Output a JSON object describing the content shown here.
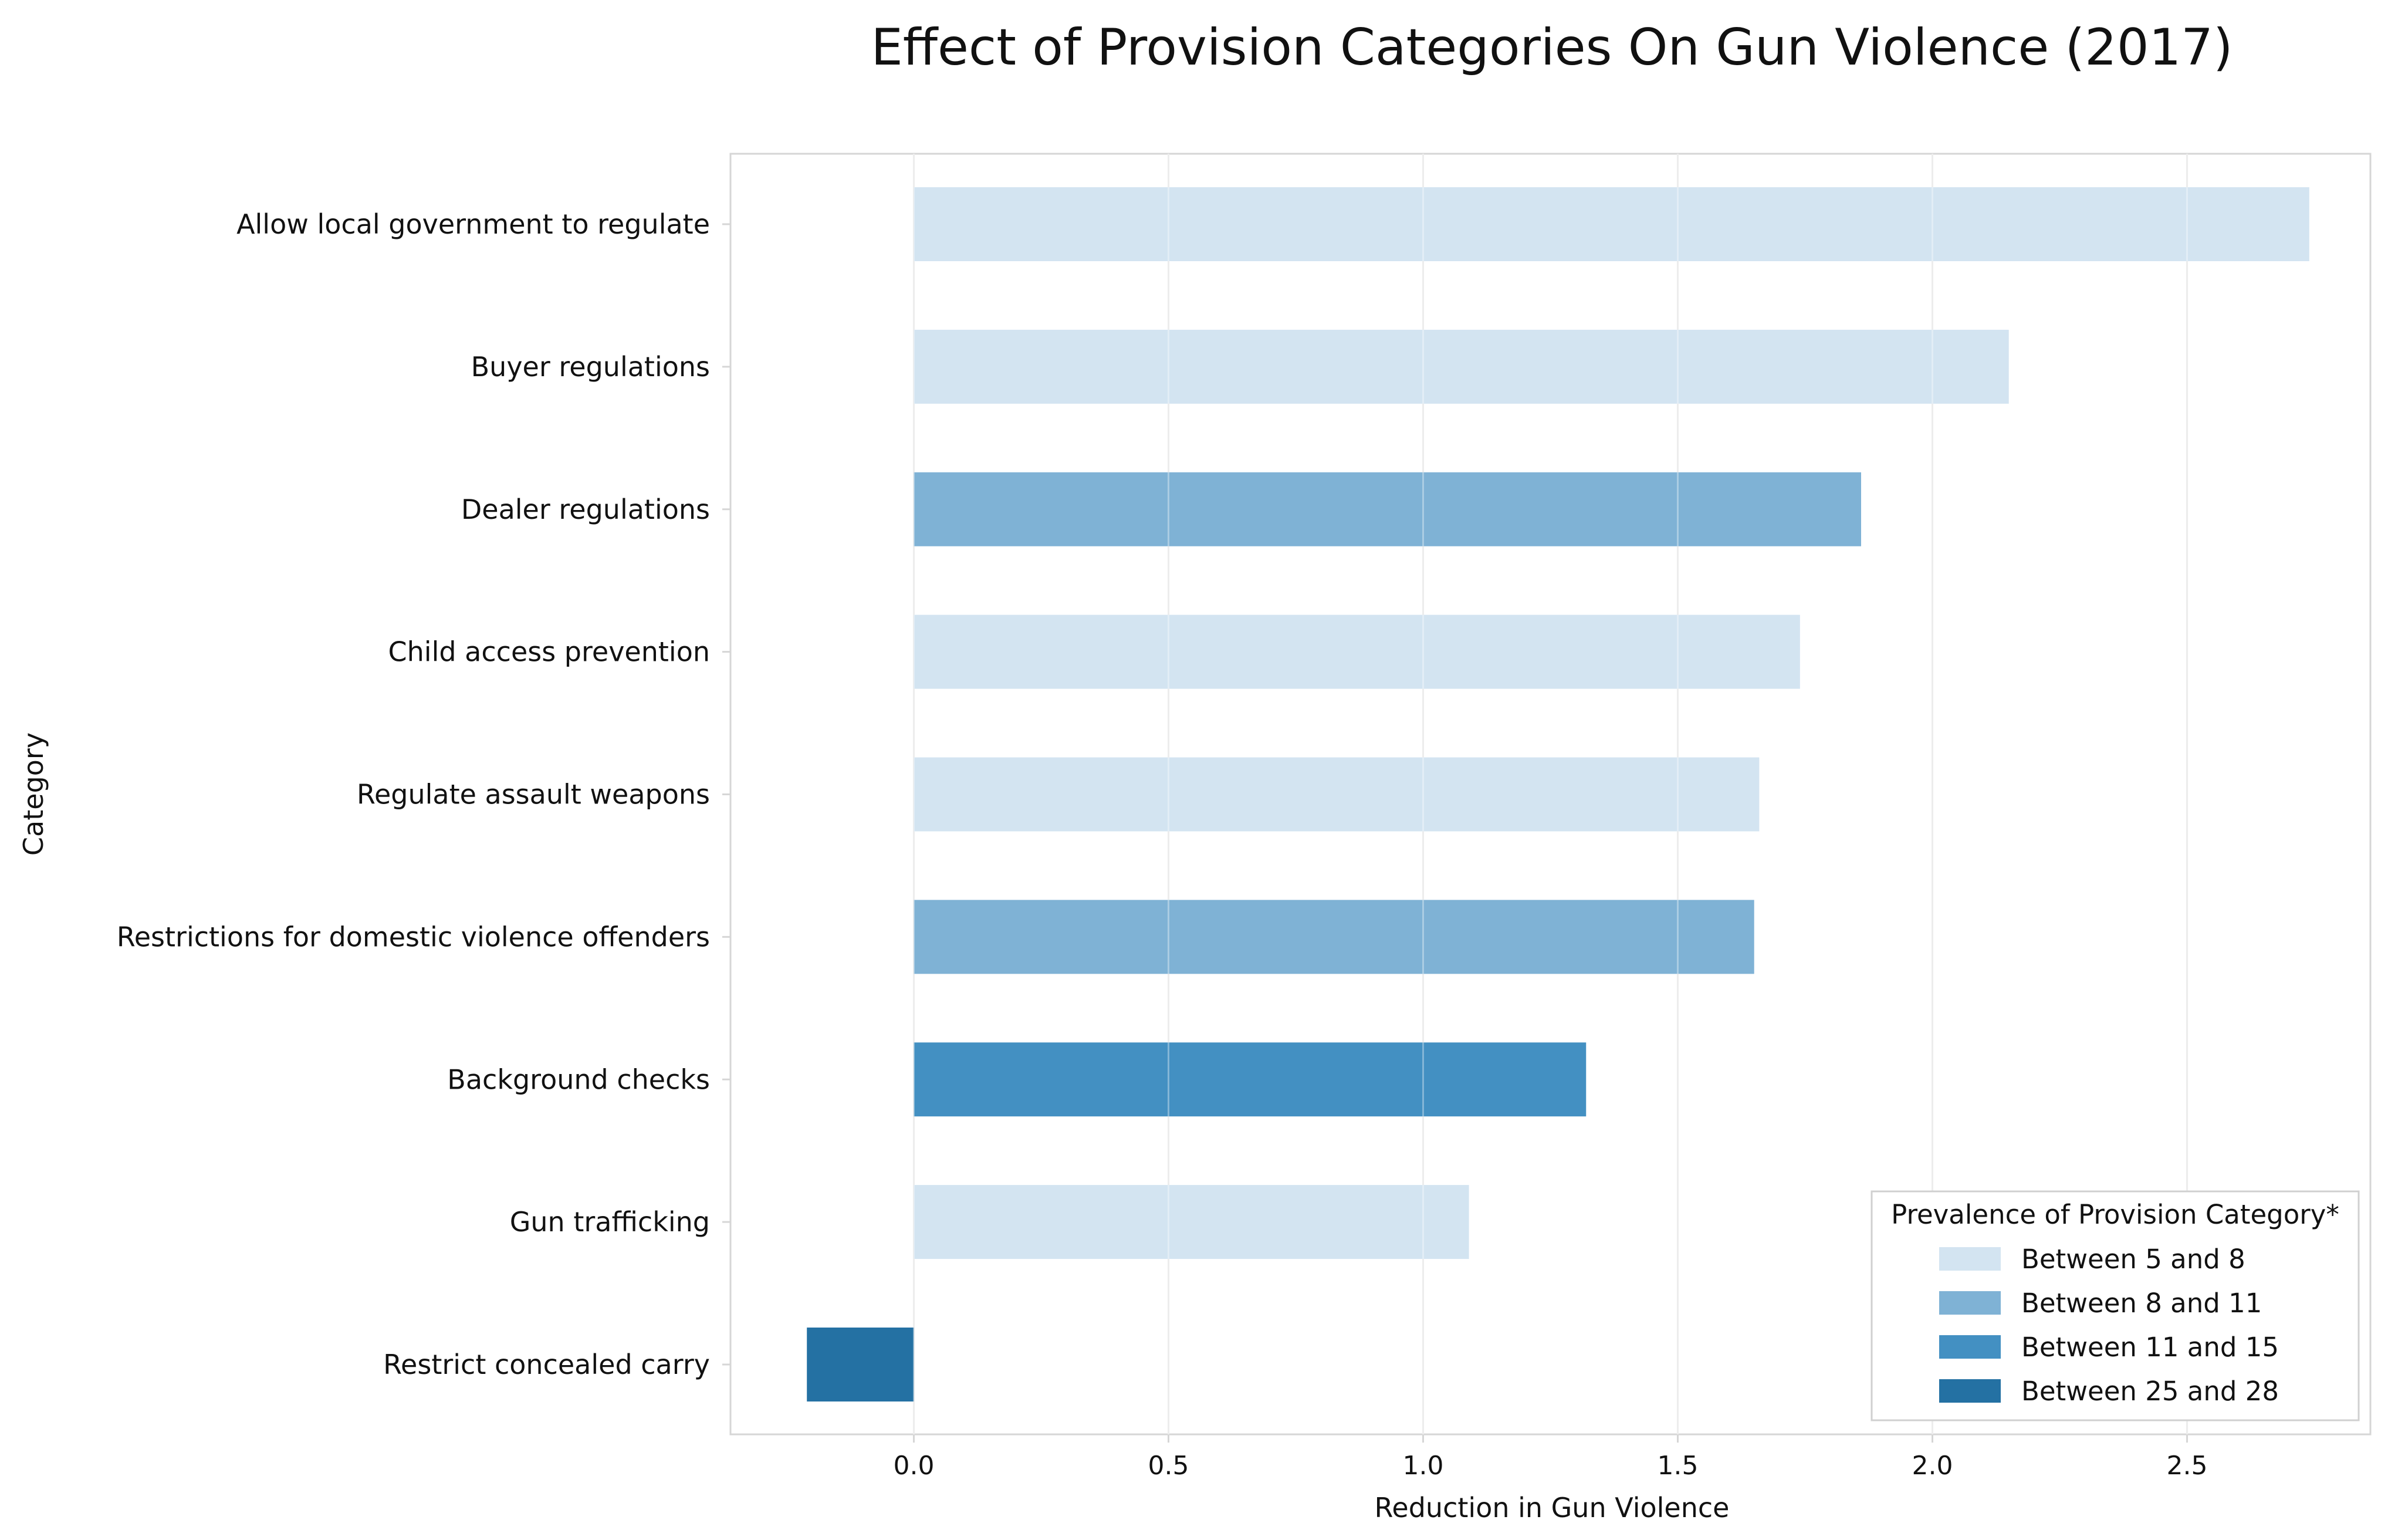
{
  "chart_data": {
    "type": "bar",
    "orientation": "horizontal",
    "title": "Effect of Provision Categories On Gun Violence (2017)",
    "xlabel": "Reduction in Gun Violence",
    "ylabel": "Category",
    "xlim": [
      -0.36,
      2.86
    ],
    "xticks": [
      0.0,
      0.5,
      1.0,
      1.5,
      2.0,
      2.5
    ],
    "xtick_labels": [
      "0.0",
      "0.5",
      "1.0",
      "1.5",
      "2.0",
      "2.5"
    ],
    "grid": true,
    "categories": [
      "Allow local government to regulate",
      "Buyer regulations",
      "Dealer regulations",
      "Child access prevention",
      "Regulate assault weapons",
      "Restrictions for domestic violence offenders",
      "Background checks",
      "Gun trafficking",
      "Restrict concealed carry"
    ],
    "values": [
      2.74,
      2.15,
      1.86,
      1.74,
      1.66,
      1.65,
      1.32,
      1.09,
      -0.21
    ],
    "prevalence_group": [
      0,
      0,
      1,
      0,
      0,
      1,
      2,
      0,
      3
    ],
    "legend": {
      "title": "Prevalence of Provision Category*",
      "position": "lower-right",
      "entries": [
        {
          "label": "Between 5 and 8",
          "color": "#d3e4f1"
        },
        {
          "label": "Between 8 and 11",
          "color": "#7fb2d5"
        },
        {
          "label": "Between 11 and 15",
          "color": "#4390c2"
        },
        {
          "label": "Between 25 and 28",
          "color": "#2471a3"
        }
      ]
    }
  }
}
